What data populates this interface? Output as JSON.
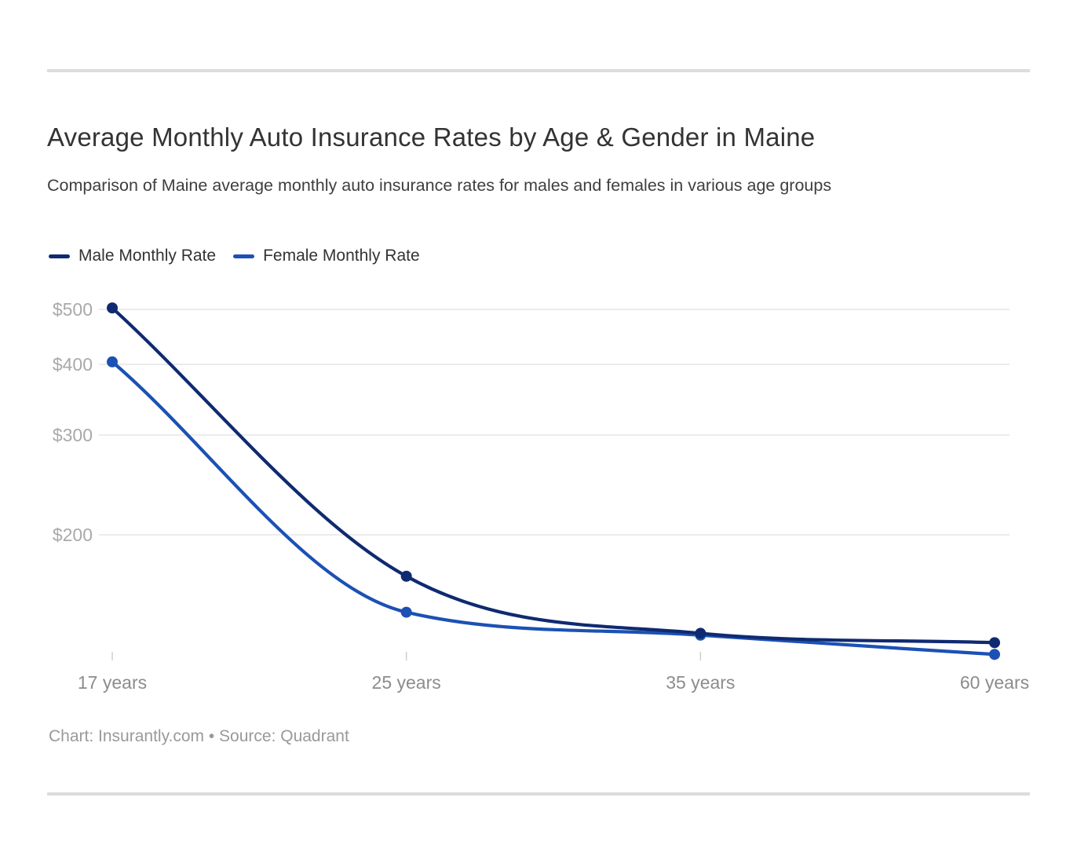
{
  "page": {
    "title": "Average Monthly Auto Insurance Rates by Age & Gender in Maine",
    "subtitle": "Comparison of Maine average monthly auto insurance rates for males and females in various age groups",
    "footer": "Chart: Insurantly.com • Source: Quadrant"
  },
  "legend": {
    "items": [
      {
        "label": "Male Monthly Rate",
        "color": "#0f2a70"
      },
      {
        "label": "Female Monthly Rate",
        "color": "#1b51b4"
      }
    ]
  },
  "chart_data": {
    "type": "line",
    "title": "Average Monthly Auto Insurance Rates by Age & Gender in Maine",
    "subtitle": "Comparison of Maine average monthly auto insurance rates for males and females in various age groups",
    "categories": [
      "17 years",
      "25 years",
      "35 years",
      "60 years"
    ],
    "series": [
      {
        "name": "Male Monthly Rate",
        "color": "#0f2a70",
        "values": [
          503,
          169,
          134,
          129
        ]
      },
      {
        "name": "Female Monthly Rate",
        "color": "#1b51b4",
        "values": [
          404,
          146,
          133,
          123
        ]
      }
    ],
    "xlabel": "",
    "ylabel": "",
    "y_scale": "log",
    "y_ticks": [
      500,
      400,
      300,
      200
    ],
    "y_tick_labels": [
      "$500",
      "$400",
      "$300",
      "$200"
    ],
    "y_tick_prefix": "$",
    "grid": true,
    "legend_position": "top",
    "attribution": "Chart: Insurantly.com • Source: Quadrant",
    "colors": {
      "gridline": "#e5e5e5",
      "tick": "#cccccc",
      "y_label": "#a9a9a9",
      "x_label": "#8c8c8c"
    }
  }
}
